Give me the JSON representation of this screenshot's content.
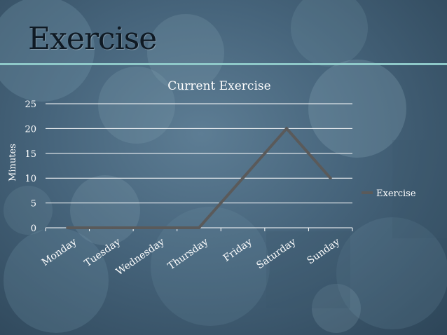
{
  "slide": {
    "title": "Exercise"
  },
  "colors": {
    "background": "#46647b",
    "accent_rule": "#8fc9c9",
    "line": "#5a5a5a",
    "text": "#ffffff"
  },
  "chart_data": {
    "type": "line",
    "title": "Current Exercise",
    "xlabel": "",
    "ylabel": "Minutes",
    "categories": [
      "Monday",
      "Tuesday",
      "Wednesday",
      "Thursday",
      "Friday",
      "Saturday",
      "Sunday"
    ],
    "series": [
      {
        "name": "Exercise",
        "values": [
          0,
          0,
          0,
          0,
          10,
          20,
          10
        ]
      }
    ],
    "ylim": [
      0,
      25
    ],
    "yticks": [
      "0",
      "5",
      "10",
      "15",
      "20",
      "25"
    ],
    "grid": true,
    "legend": "right"
  }
}
